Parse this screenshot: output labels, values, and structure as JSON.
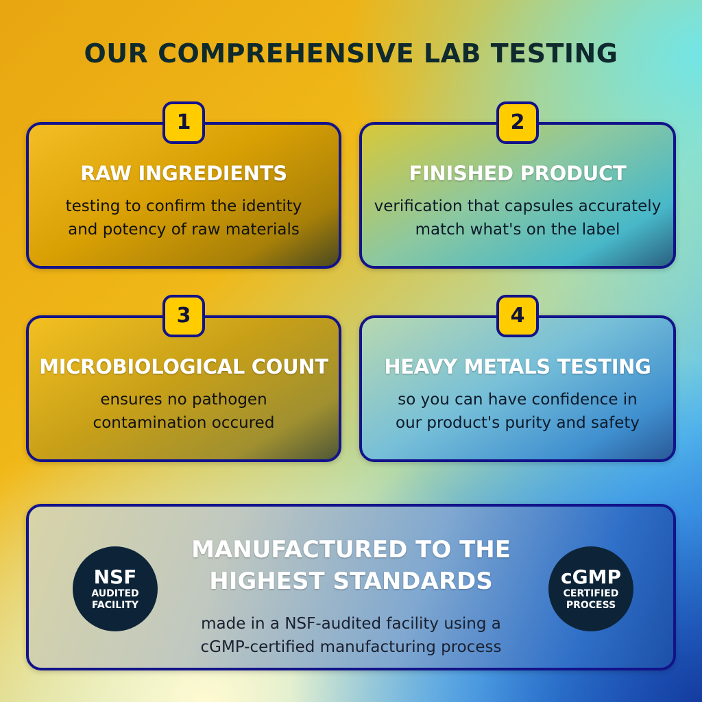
{
  "title": "OUR COMPREHENSIVE LAB TESTING",
  "cards": [
    {
      "number": "1",
      "heading": "RAW INGREDIENTS",
      "lines": [
        "testing to confirm the identity",
        "and potency of raw materials"
      ]
    },
    {
      "number": "2",
      "heading": "FINISHED PRODUCT",
      "lines": [
        "verification that capsules accurately",
        "match what's on the label"
      ]
    },
    {
      "number": "3",
      "heading": "MICROBIOLOGICAL COUNT",
      "lines": [
        "ensures no pathogen",
        "contamination occured"
      ]
    },
    {
      "number": "4",
      "heading": "HEAVY METALS TESTING",
      "lines": [
        "so you can have confidence in",
        "our product's purity and safety"
      ]
    }
  ],
  "standards": {
    "heading_lines": [
      "MANUFACTURED TO THE",
      "HIGHEST STANDARDS"
    ],
    "lines": [
      "made in a NSF-audited facility using a",
      "cGMP-certified manufacturing process"
    ],
    "seal_left": {
      "main": "NSF",
      "sub1": "AUDITED",
      "sub2": "FACILITY"
    },
    "seal_right": {
      "main": "cGMP",
      "sub1": "CERTIFIED",
      "sub2": "PROCESS"
    }
  },
  "colors": {
    "border": "#12138a",
    "badge": "#ffcc00",
    "seal": "#0d2438"
  }
}
